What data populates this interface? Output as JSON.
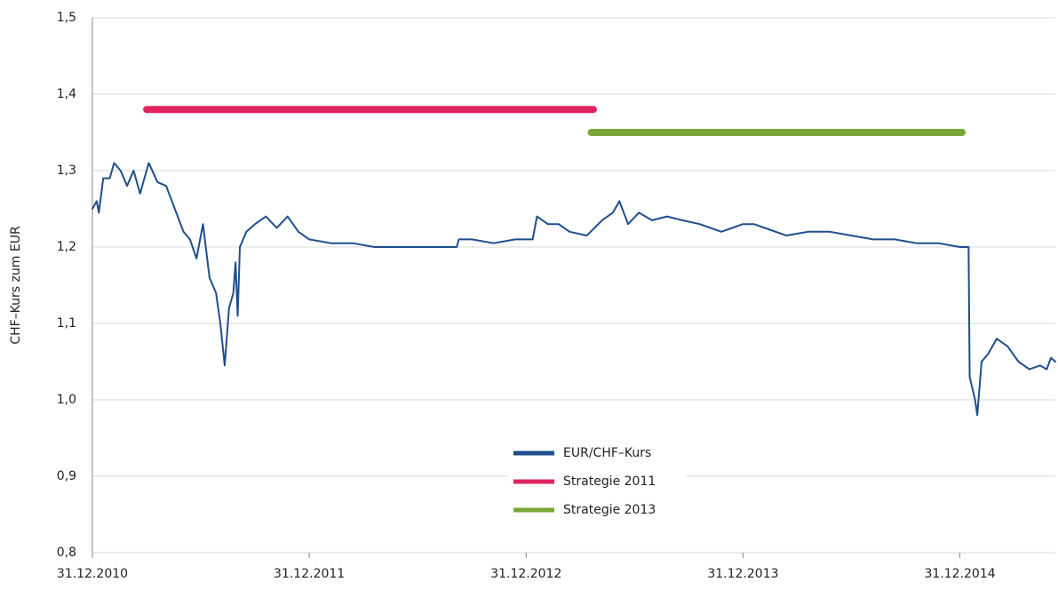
{
  "chart_data": {
    "type": "line",
    "y_label": "CHF–Kurs zum EUR",
    "xlim": [
      2011.0,
      2015.44
    ],
    "xticks": [
      {
        "value": 2011,
        "label": "31.12.2010"
      },
      {
        "value": 2012,
        "label": "31.12.2011"
      },
      {
        "value": 2013,
        "label": "31.12.2012"
      },
      {
        "value": 2014,
        "label": "31.12.2013"
      },
      {
        "value": 2015,
        "label": "31.12.2014"
      }
    ],
    "ylim": [
      0.8,
      1.5
    ],
    "yticks": [
      {
        "value": 0.8,
        "label": "0,8"
      },
      {
        "value": 0.9,
        "label": "0,9"
      },
      {
        "value": 1.0,
        "label": "1,0"
      },
      {
        "value": 1.1,
        "label": "1,1"
      },
      {
        "value": 1.2,
        "label": "1,2"
      },
      {
        "value": 1.3,
        "label": "1,3"
      },
      {
        "value": 1.4,
        "label": "1,4"
      },
      {
        "value": 1.5,
        "label": "1,5"
      }
    ],
    "grid": true,
    "legend": "center",
    "series": [
      {
        "name": "EUR/CHF–Kurs",
        "color": "#1f4e8c",
        "width": 2,
        "x": [
          2011.0,
          2011.02,
          2011.03,
          2011.05,
          2011.08,
          2011.1,
          2011.13,
          2011.16,
          2011.19,
          2011.22,
          2011.26,
          2011.3,
          2011.34,
          2011.38,
          2011.42,
          2011.45,
          2011.48,
          2011.51,
          2011.54,
          2011.57,
          2011.59,
          2011.61,
          2011.63,
          2011.65,
          2011.66,
          2011.67,
          2011.68,
          2011.71,
          2011.75,
          2011.8,
          2011.85,
          2011.9,
          2011.95,
          2012.0,
          2012.1,
          2012.2,
          2012.3,
          2012.5,
          2012.68,
          2012.69,
          2012.75,
          2012.85,
          2012.95,
          2013.03,
          2013.05,
          2013.1,
          2013.15,
          2013.2,
          2013.28,
          2013.35,
          2013.4,
          2013.43,
          2013.47,
          2013.52,
          2013.58,
          2013.65,
          2013.72,
          2013.8,
          2013.9,
          2014.0,
          2014.05,
          2014.1,
          2014.2,
          2014.3,
          2014.4,
          2014.5,
          2014.6,
          2014.7,
          2014.8,
          2014.9,
          2015.0,
          2015.04,
          2015.045,
          2015.07,
          2015.08,
          2015.1,
          2015.13,
          2015.17,
          2015.22,
          2015.27,
          2015.32,
          2015.37,
          2015.4,
          2015.42,
          2015.44
        ],
        "values": [
          1.25,
          1.26,
          1.245,
          1.29,
          1.29,
          1.31,
          1.3,
          1.28,
          1.3,
          1.27,
          1.31,
          1.285,
          1.28,
          1.25,
          1.22,
          1.21,
          1.185,
          1.23,
          1.16,
          1.14,
          1.1,
          1.045,
          1.12,
          1.14,
          1.18,
          1.11,
          1.2,
          1.22,
          1.23,
          1.24,
          1.225,
          1.24,
          1.22,
          1.21,
          1.205,
          1.205,
          1.2,
          1.2,
          1.2,
          1.21,
          1.21,
          1.205,
          1.21,
          1.21,
          1.24,
          1.23,
          1.23,
          1.22,
          1.215,
          1.235,
          1.245,
          1.26,
          1.23,
          1.245,
          1.235,
          1.24,
          1.235,
          1.23,
          1.22,
          1.23,
          1.23,
          1.225,
          1.215,
          1.22,
          1.22,
          1.215,
          1.21,
          1.21,
          1.205,
          1.205,
          1.2,
          1.2,
          1.03,
          1.0,
          0.98,
          1.05,
          1.06,
          1.08,
          1.07,
          1.05,
          1.04,
          1.045,
          1.04,
          1.055,
          1.05
        ]
      },
      {
        "name": "Strategie 2011",
        "color": "#e0245e",
        "width": 8,
        "x": [
          2011.25,
          2013.31
        ],
        "values": [
          1.38,
          1.38
        ]
      },
      {
        "name": "Strategie 2013",
        "color": "#78a737",
        "width": 8,
        "x": [
          2013.3,
          2015.01
        ],
        "values": [
          1.35,
          1.35
        ]
      }
    ]
  }
}
